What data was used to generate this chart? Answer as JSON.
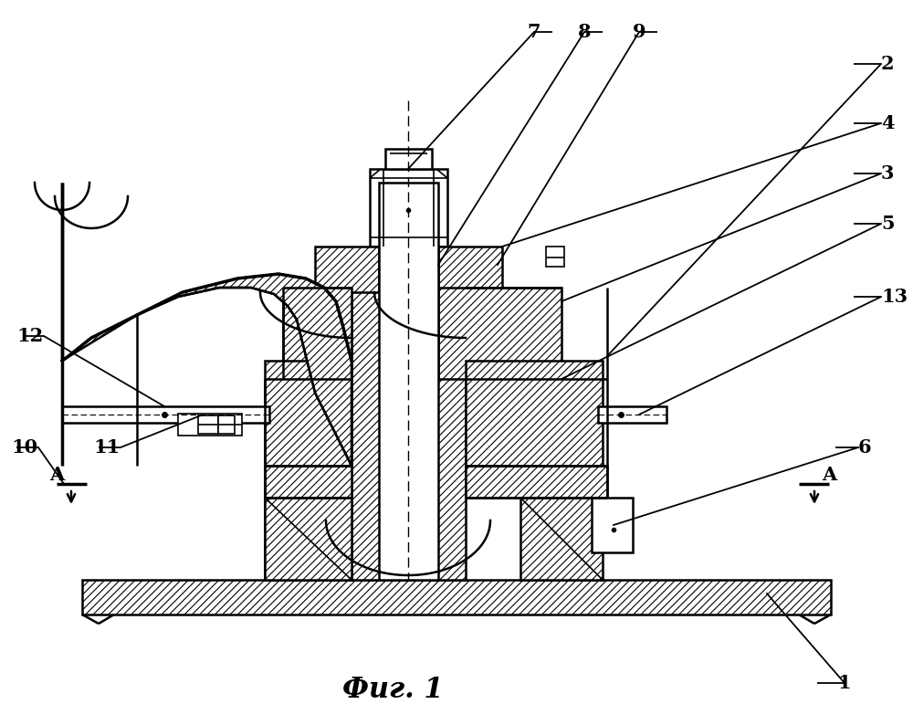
{
  "title": "Фиг. 1",
  "bg_color": "#ffffff",
  "lw_thin": 1.2,
  "lw_med": 1.8,
  "lw_thick": 2.5,
  "hatch": "////"
}
